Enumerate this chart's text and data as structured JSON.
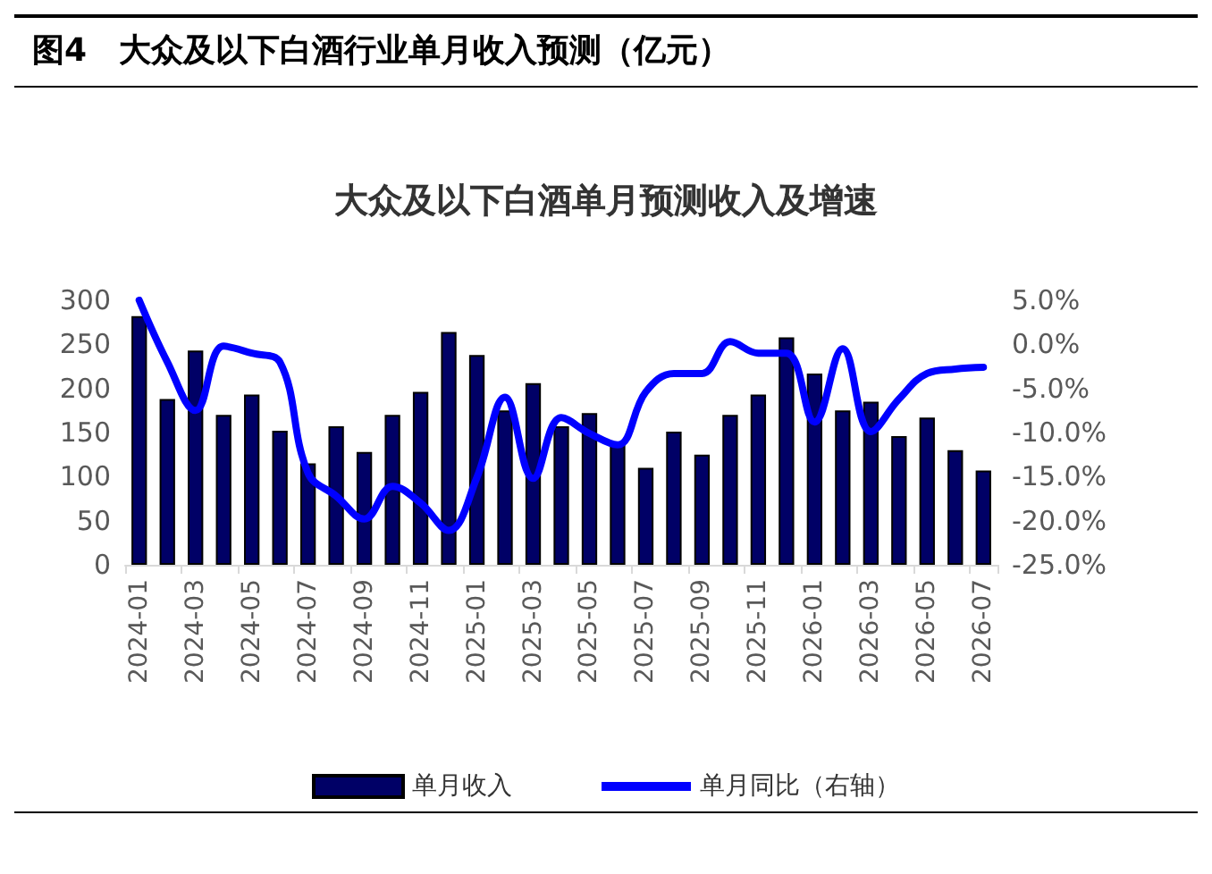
{
  "chart_data": {
    "type": "bar",
    "title": "图4　大众及以下白酒行业单月收入预测（亿元）",
    "subtitle": "大众及以下白酒单月预测收入及增速",
    "categories": [
      "2024-01",
      null,
      "2024-03",
      null,
      "2024-05",
      null,
      "2024-07",
      null,
      "2024-09",
      null,
      "2024-11",
      null,
      "2025-01",
      null,
      "2025-03",
      null,
      "2025-05",
      null,
      "2025-07",
      null,
      "2025-09",
      null,
      "2025-11",
      null,
      "2026-01",
      null,
      "2026-03",
      null,
      "2026-05",
      null,
      "2026-07"
    ],
    "series": [
      {
        "name": "单月收入",
        "color": "#000066",
        "values": [
          282,
          188,
          243,
          170,
          193,
          152,
          115,
          157,
          128,
          170,
          196,
          264,
          238,
          175,
          206,
          157,
          172,
          136,
          110,
          151,
          125,
          170,
          193,
          258,
          217,
          175,
          185,
          146,
          167,
          130,
          107
        ]
      },
      {
        "name": "单月同比（右轴）",
        "type": "line",
        "axis": "y2",
        "color": "#0000ff",
        "values": [
          5.0,
          -2.0,
          -7.5,
          -0.2,
          -1.0,
          -2.0,
          -14.6,
          -17.2,
          -19.8,
          -16.1,
          -18.0,
          -21.1,
          -15.1,
          -6.0,
          -15.2,
          -8.3,
          -10.1,
          -11.4,
          -5.4,
          -3.3,
          -3.3,
          0.3,
          -1.0,
          -1.0,
          -8.8,
          -0.5,
          -9.9,
          -6.2,
          -3.3,
          -2.8,
          -2.6
        ]
      }
    ],
    "ylim": [
      0,
      300
    ],
    "yticks": [
      0,
      50,
      100,
      150,
      200,
      250,
      300
    ],
    "y2lim": [
      -25,
      5
    ],
    "y2ticks": [
      {
        "value": 5,
        "label": "5.0%"
      },
      {
        "value": 0,
        "label": "0.0%"
      },
      {
        "value": -5,
        "label": "-5.0%"
      },
      {
        "value": -10,
        "label": "-10.0%"
      },
      {
        "value": -15,
        "label": "-15.0%"
      },
      {
        "value": -20,
        "label": "-20.0%"
      },
      {
        "value": -25,
        "label": "-25.0%"
      }
    ],
    "grid": false,
    "legend": "bottom",
    "marker": "none",
    "line_style": "solid"
  }
}
